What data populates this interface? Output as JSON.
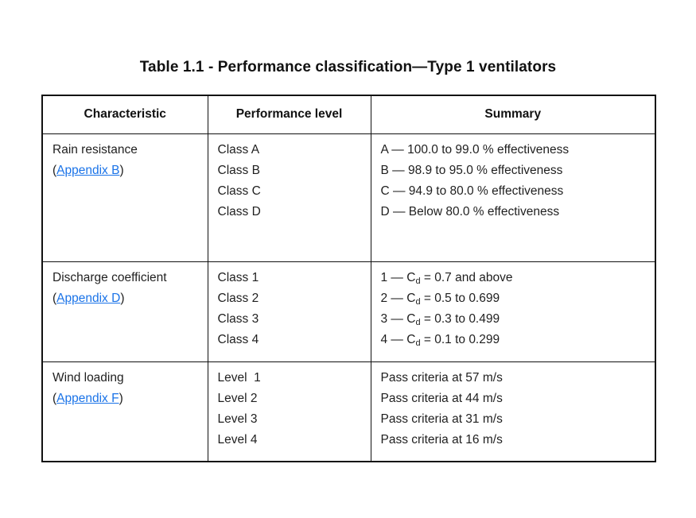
{
  "title": "Table 1.1 - Performance classification—Type 1 ventilators",
  "colors": {
    "background": "#ffffff",
    "text": "#1f1f1f",
    "border": "#111111",
    "link": "#1a73e8"
  },
  "table": {
    "headers": [
      "Characteristic",
      "Performance level",
      "Summary"
    ],
    "rows": [
      {
        "characteristic": {
          "name": "Rain resistance",
          "appendix": {
            "open": "(",
            "label": "Appendix B",
            "close": ")"
          }
        },
        "levels": [
          "Class A",
          "Class B",
          "Class C",
          "Class D"
        ],
        "summary": [
          "A — 100.0 to 99.0 % effectiveness",
          "B — 98.9 to 95.0 % effectiveness",
          "C — 94.9 to 80.0 % effectiveness",
          "D — Below 80.0 % effectiveness"
        ]
      },
      {
        "characteristic": {
          "name": "Discharge coefficient",
          "appendix": {
            "open": "(",
            "label": "Appendix D",
            "close": ")"
          }
        },
        "levels": [
          "Class 1",
          "Class 2",
          "Class 3",
          "Class 4"
        ],
        "summary_parts": [
          {
            "pre": "1 — C",
            "sub": "d",
            "post": " = 0.7 and above"
          },
          {
            "pre": "2 — C",
            "sub": "d",
            "post": " = 0.5 to 0.699"
          },
          {
            "pre": "3 — C",
            "sub": "d",
            "post": " = 0.3 to 0.499"
          },
          {
            "pre": "4 — C",
            "sub": "d",
            "post": " = 0.1 to 0.299"
          }
        ]
      },
      {
        "characteristic": {
          "name": "Wind loading",
          "appendix": {
            "open": "(",
            "label": "Appendix F",
            "close": ")"
          }
        },
        "levels": [
          "Level  1",
          "Level 2",
          "Level 3",
          "Level 4"
        ],
        "summary": [
          "Pass criteria at 57 m/s",
          "Pass criteria at 44 m/s",
          "Pass criteria at 31 m/s",
          "Pass criteria at 16 m/s"
        ]
      }
    ]
  }
}
